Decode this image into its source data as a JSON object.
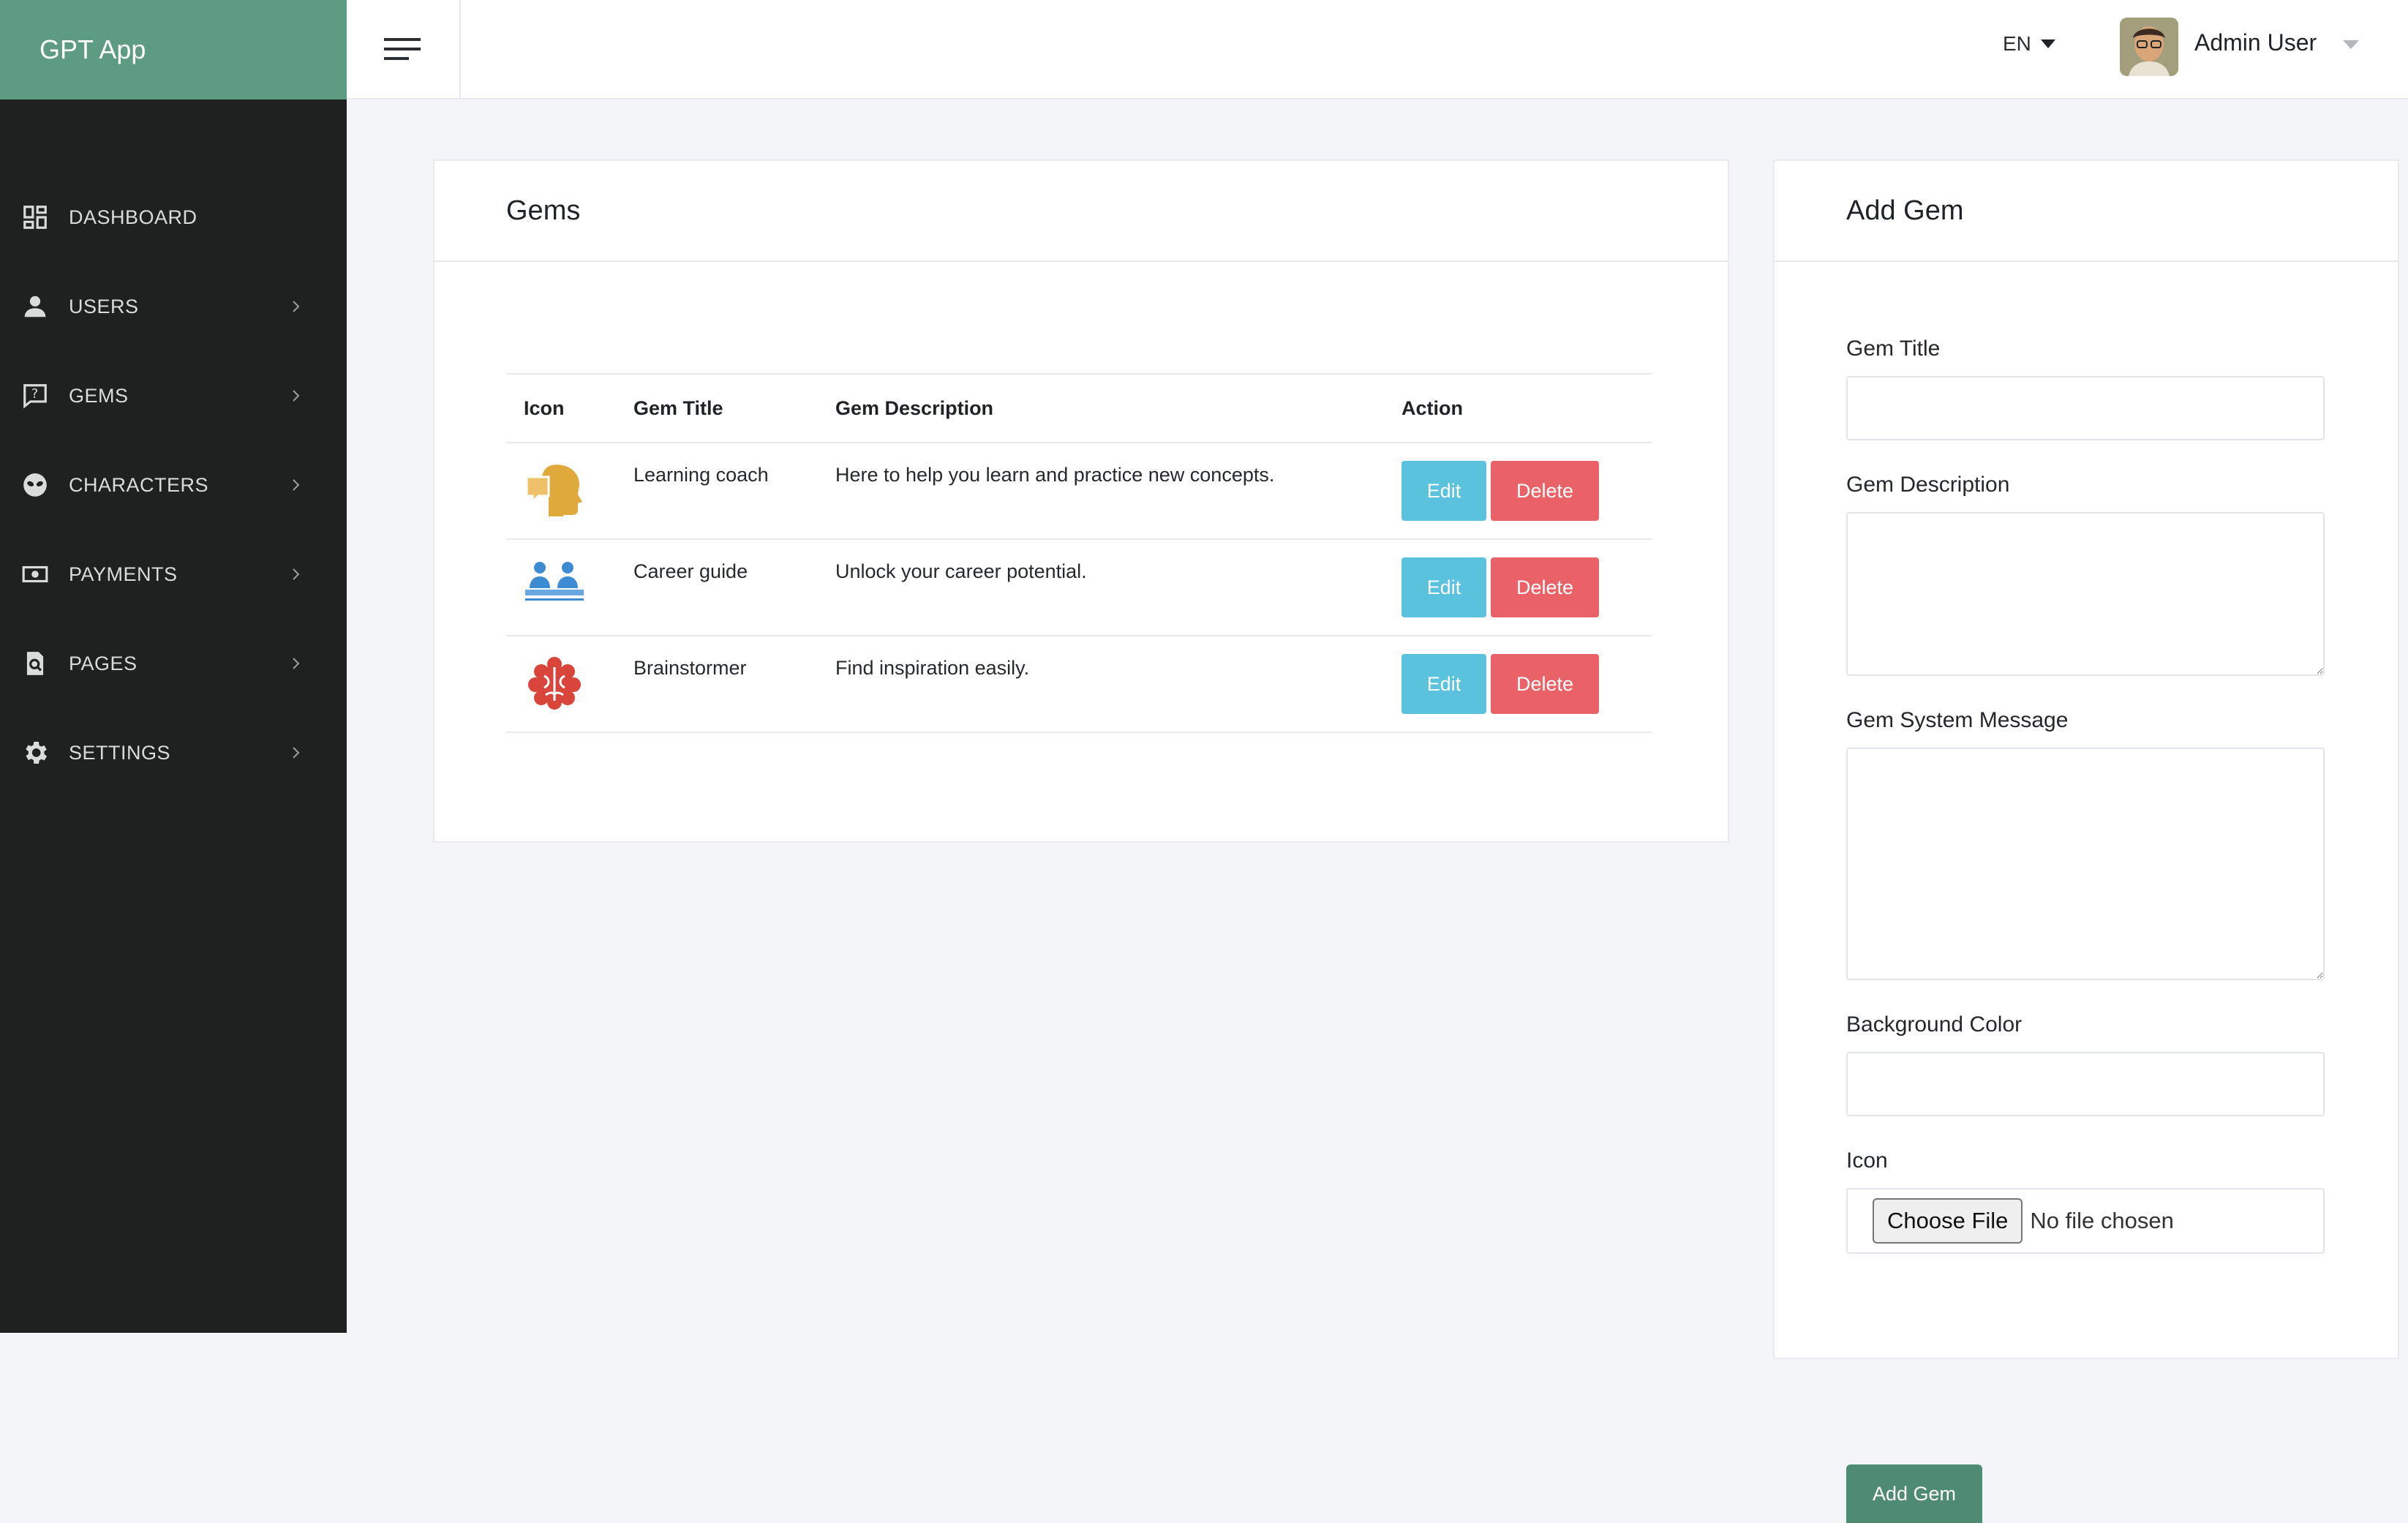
{
  "app": {
    "brand": "GPT App"
  },
  "colors": {
    "brand": "#5d9b82",
    "sidebar": "#1e211f",
    "edit": "#5bc2dd",
    "delete": "#e96267",
    "add": "#4f8a72"
  },
  "sidebar": {
    "items": [
      {
        "label": "DASHBOARD",
        "icon": "dashboard-icon",
        "has_submenu": false
      },
      {
        "label": "USERS",
        "icon": "user-icon",
        "has_submenu": true
      },
      {
        "label": "GEMS",
        "icon": "gem-chat-icon",
        "has_submenu": true
      },
      {
        "label": "CHARACTERS",
        "icon": "alien-icon",
        "has_submenu": true
      },
      {
        "label": "PAYMENTS",
        "icon": "money-icon",
        "has_submenu": true
      },
      {
        "label": "PAGES",
        "icon": "page-search-icon",
        "has_submenu": true
      },
      {
        "label": "SETTINGS",
        "icon": "gear-icon",
        "has_submenu": true
      }
    ]
  },
  "header": {
    "language": "EN",
    "user_name": "Admin User"
  },
  "gems_card": {
    "title": "Gems",
    "columns": [
      "Icon",
      "Gem Title",
      "Gem Description",
      "Action"
    ],
    "rows": [
      {
        "icon": "learning-coach-icon",
        "title": "Learning coach",
        "description": "Here to help you learn and practice new concepts."
      },
      {
        "icon": "career-guide-icon",
        "title": "Career guide",
        "description": "Unlock your career potential."
      },
      {
        "icon": "brain-icon",
        "title": "Brainstormer",
        "description": "Find inspiration easily."
      }
    ],
    "edit_label": "Edit",
    "delete_label": "Delete"
  },
  "add_card": {
    "title": "Add Gem",
    "fields": {
      "gem_title": {
        "label": "Gem Title",
        "value": ""
      },
      "gem_description": {
        "label": "Gem Description",
        "value": ""
      },
      "gem_system_message": {
        "label": "Gem System Message",
        "value": ""
      },
      "background_color": {
        "label": "Background Color",
        "value": ""
      },
      "icon": {
        "label": "Icon",
        "button": "Choose File",
        "status": "No file chosen"
      }
    },
    "submit_label": "Add Gem"
  }
}
